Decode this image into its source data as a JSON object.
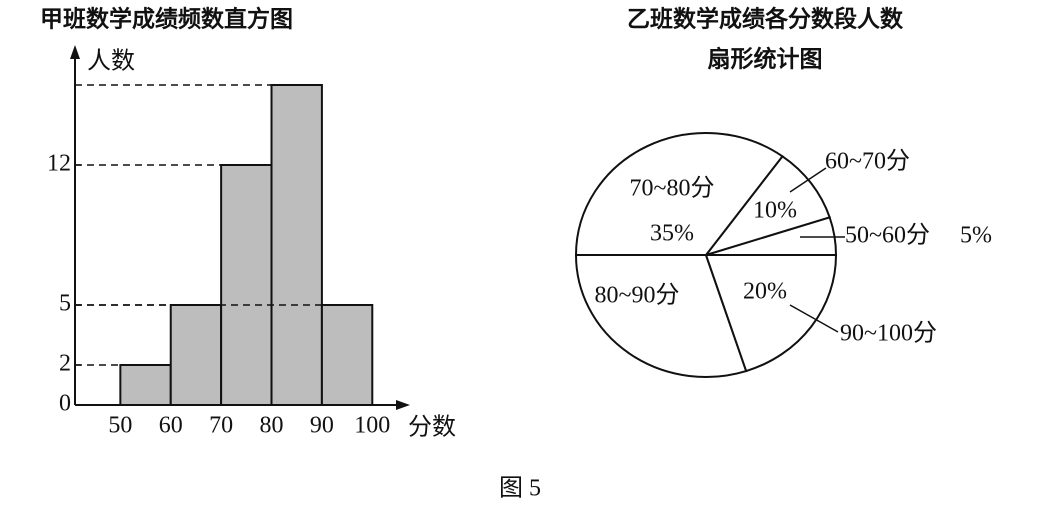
{
  "chart_data": [
    {
      "type": "histogram",
      "title": "甲班数学成绩频数直方图",
      "x_label": "分数",
      "y_label": "人数",
      "bins": [
        50,
        60,
        70,
        80,
        90,
        100
      ],
      "values": [
        2,
        5,
        12,
        16,
        5
      ],
      "color": "#bdbdbd",
      "xlim": [
        41,
        105.5
      ],
      "ylim": [
        0,
        17.5
      ],
      "yticks": [
        0,
        2,
        5,
        12
      ]
    },
    {
      "type": "pie",
      "title": [
        "乙班数学成绩各分数段人数",
        "扇形统计图"
      ],
      "categories": [
        "50~60分",
        "60~70分",
        "70~80分",
        "80~90分",
        "90~100分"
      ],
      "values": [
        5,
        10,
        35,
        30,
        20
      ],
      "value_labels": [
        "5%",
        "10%",
        "35%",
        null,
        "20%"
      ]
    }
  ],
  "caption": "图 5"
}
